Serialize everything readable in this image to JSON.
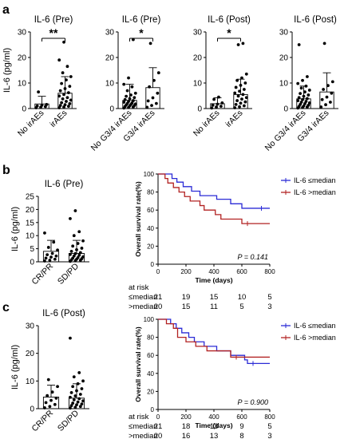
{
  "figure": {
    "panel_labels": [
      "a",
      "b",
      "c"
    ]
  },
  "chart_data": [
    {
      "type": "scatter",
      "style": "bar-with-dots",
      "panel": "a",
      "title": "IL-6 (Pre)",
      "ylabel": "IL-6 (pg/ml)",
      "ylim": [
        0,
        30
      ],
      "yticks": [
        0,
        10,
        20,
        30
      ],
      "categories": [
        "No irAEs",
        "irAEs"
      ],
      "bar_means": [
        1.8,
        6.0
      ],
      "error_upper": [
        4.8,
        12.5
      ],
      "points": [
        [
          0.3,
          0.5,
          0.8,
          1.0,
          1.3,
          1.6,
          6.5
        ],
        [
          0.3,
          0.6,
          0.9,
          1.2,
          1.5,
          1.9,
          2.3,
          2.8,
          3.3,
          3.8,
          4.3,
          4.9,
          5.5,
          6.2,
          7.0,
          7.8,
          8.7,
          9.8,
          11.2,
          12.5,
          14.0,
          16.5,
          19.0,
          26.0
        ]
      ],
      "significance": {
        "pair": [
          0,
          1
        ],
        "label": "**"
      }
    },
    {
      "type": "scatter",
      "style": "bar-with-dots",
      "panel": "a",
      "title": "IL-6 (Pre)",
      "ylabel": "",
      "ylim": [
        0,
        30
      ],
      "yticks": [
        0,
        10,
        20,
        30
      ],
      "categories": [
        "No G3/4 irAEs",
        "G3/4 irAEs"
      ],
      "bar_means": [
        3.2,
        8.2
      ],
      "error_upper": [
        9.5,
        16.0
      ],
      "points": [
        [
          0.2,
          0.4,
          0.6,
          0.8,
          1.0,
          1.2,
          1.4,
          1.6,
          1.8,
          2.0,
          2.2,
          2.5,
          2.8,
          3.1,
          3.5,
          3.9,
          4.3,
          4.8,
          5.3,
          6.0,
          7.0,
          8.5,
          9.5,
          12.0,
          27.0
        ],
        [
          0.5,
          1.2,
          2.0,
          3.0,
          4.2,
          6.0,
          8.5,
          11.0,
          14.0,
          25.5
        ]
      ],
      "significance": {
        "pair": [
          0,
          1
        ],
        "label": "*"
      }
    },
    {
      "type": "scatter",
      "style": "bar-with-dots",
      "panel": "a",
      "title": "IL-6 (Post)",
      "ylabel": "",
      "ylim": [
        0,
        30
      ],
      "yticks": [
        0,
        10,
        20,
        30
      ],
      "categories": [
        "No irAEs",
        "irAEs"
      ],
      "bar_means": [
        1.9,
        5.5
      ],
      "error_upper": [
        4.2,
        11.5
      ],
      "points": [
        [
          0.2,
          0.6,
          0.9,
          1.3,
          1.7,
          2.2,
          3.6,
          4.5
        ],
        [
          0.3,
          0.7,
          1.1,
          1.6,
          2.1,
          2.6,
          3.1,
          3.7,
          4.3,
          4.9,
          5.5,
          6.1,
          6.8,
          7.5,
          8.3,
          9.1,
          10.0,
          11.0,
          12.0,
          13.5,
          25.0,
          25.5
        ]
      ],
      "significance": {
        "pair": [
          0,
          1
        ],
        "label": "*"
      }
    },
    {
      "type": "scatter",
      "style": "bar-with-dots",
      "panel": "a",
      "title": "IL-6 (Post)",
      "ylabel": "",
      "ylim": [
        0,
        30
      ],
      "yticks": [
        0,
        10,
        20,
        30
      ],
      "categories": [
        "No G3/4 irAEs",
        "G3/4 irAEs"
      ],
      "bar_means": [
        3.8,
        6.5
      ],
      "error_upper": [
        8.8,
        14.0
      ],
      "points": [
        [
          0.2,
          0.4,
          0.6,
          0.8,
          1.0,
          1.3,
          1.6,
          1.9,
          2.2,
          2.5,
          2.8,
          3.1,
          3.5,
          3.9,
          4.3,
          4.8,
          5.3,
          5.9,
          6.5,
          7.2,
          8.0,
          8.8,
          9.8,
          11.0,
          12.5,
          25.0
        ],
        [
          0.6,
          1.5,
          2.5,
          3.5,
          4.5,
          6.0,
          7.5,
          9.0,
          10.5,
          25.5
        ]
      ],
      "significance": null
    },
    {
      "type": "scatter",
      "style": "bar-with-dots",
      "panel": "b",
      "title": "IL-6 (Pre)",
      "ylabel": "IL-6 (pg/ml)",
      "ylim": [
        0,
        25
      ],
      "yticks": [
        0,
        5,
        10,
        15,
        20,
        25
      ],
      "categories": [
        "CR/PR",
        "SD/PD"
      ],
      "bar_means": [
        4.0,
        3.2
      ],
      "error_upper": [
        8.2,
        8.2
      ],
      "points": [
        [
          0.3,
          0.6,
          1.0,
          1.4,
          1.8,
          2.2,
          2.7,
          3.2,
          4.5,
          5.5,
          7.5,
          11.0
        ],
        [
          0.2,
          0.4,
          0.6,
          0.8,
          1.0,
          1.2,
          1.4,
          1.6,
          1.9,
          2.2,
          2.5,
          2.8,
          3.1,
          3.5,
          4.0,
          4.6,
          5.2,
          6.0,
          7.0,
          8.0,
          10.0,
          11.5,
          16.5,
          19.5
        ]
      ],
      "significance": null
    },
    {
      "type": "line",
      "style": "kaplan-meier",
      "panel": "b",
      "title": "",
      "xlabel": "Time (days)",
      "ylabel": "Overall survival rate(%)",
      "xlim": [
        0,
        800
      ],
      "ylim": [
        0,
        100
      ],
      "xticks": [
        0,
        200,
        400,
        600,
        800
      ],
      "yticks": [
        0,
        20,
        40,
        60,
        80,
        100
      ],
      "series": [
        {
          "name": "IL-6 ≤median",
          "color": "#2b2bd6",
          "x": [
            0,
            100,
            135,
            180,
            240,
            300,
            420,
            520,
            600,
            700,
            800
          ],
          "y": [
            100,
            95,
            91,
            86,
            81,
            76,
            72,
            67,
            62,
            62,
            62
          ]
        },
        {
          "name": "IL-6 >median",
          "color": "#b22222",
          "x": [
            0,
            50,
            70,
            110,
            150,
            190,
            230,
            300,
            330,
            410,
            450,
            600,
            800
          ],
          "y": [
            100,
            95,
            90,
            85,
            80,
            75,
            70,
            65,
            60,
            55,
            50,
            45,
            45
          ]
        }
      ],
      "pvalue": "P = 0.141",
      "risk_table": {
        "label": "at risk",
        "times": [
          0,
          200,
          400,
          600,
          800
        ],
        "rows": [
          {
            "group": "≤median",
            "counts": [
              21,
              19,
              15,
              10,
              5
            ]
          },
          {
            "group": ">median",
            "counts": [
              20,
              15,
              11,
              5,
              3
            ]
          }
        ]
      }
    },
    {
      "type": "scatter",
      "style": "bar-with-dots",
      "panel": "c",
      "title": "IL-6 (Post)",
      "ylabel": "IL-6 (pg/ml)",
      "ylim": [
        0,
        30
      ],
      "yticks": [
        0,
        10,
        20,
        30
      ],
      "categories": [
        "CR/PR",
        "SD/PD"
      ],
      "bar_means": [
        4.2,
        3.8
      ],
      "error_upper": [
        8.5,
        9.0
      ],
      "points": [
        [
          0.3,
          0.8,
          1.5,
          2.2,
          3.0,
          3.8,
          4.7,
          6.0,
          8.0,
          10.5
        ],
        [
          0.2,
          0.5,
          0.8,
          1.1,
          1.4,
          1.7,
          2.0,
          2.4,
          2.8,
          3.2,
          3.6,
          4.1,
          4.6,
          5.2,
          5.8,
          6.5,
          7.2,
          8.0,
          9.0,
          10.0,
          11.5,
          13.0,
          25.5
        ]
      ],
      "significance": null
    },
    {
      "type": "line",
      "style": "kaplan-meier",
      "panel": "c",
      "title": "",
      "xlabel": "Time (days)",
      "ylabel": "Overall survival rate(%)",
      "xlim": [
        0,
        800
      ],
      "ylim": [
        0,
        100
      ],
      "xticks": [
        0,
        200,
        400,
        600,
        800
      ],
      "yticks": [
        0,
        20,
        40,
        60,
        80,
        100
      ],
      "series": [
        {
          "name": "IL-6 ≤median",
          "color": "#2b2bd6",
          "x": [
            0,
            90,
            130,
            170,
            220,
            260,
            330,
            420,
            520,
            620,
            640,
            800
          ],
          "y": [
            100,
            95,
            90,
            85,
            80,
            75,
            70,
            65,
            60,
            55,
            51,
            51
          ]
        },
        {
          "name": "IL-6 >median",
          "color": "#b22222",
          "x": [
            0,
            60,
            110,
            140,
            200,
            270,
            350,
            520,
            800
          ],
          "y": [
            100,
            95,
            90,
            80,
            75,
            70,
            65,
            58,
            58
          ]
        }
      ],
      "pvalue": "P = 0.900",
      "risk_table": {
        "label": "at risk",
        "times": [
          0,
          200,
          400,
          600,
          800
        ],
        "rows": [
          {
            "group": "≤median",
            "counts": [
              21,
              18,
              13,
              9,
              5
            ]
          },
          {
            "group": ">median",
            "counts": [
              20,
              16,
              13,
              8,
              3
            ]
          }
        ]
      }
    }
  ]
}
